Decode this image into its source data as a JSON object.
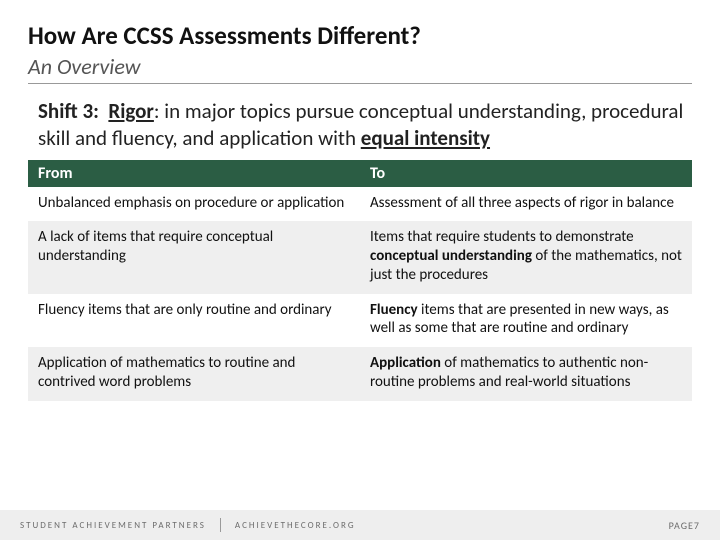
{
  "title": "How Are CCSS Assessments Different?",
  "subtitle": "An Overview",
  "shift": {
    "label": "Shift 3:",
    "keyword": "Rigor",
    "body1": ": in major topics pursue conceptual understanding, procedural skill and fluency, and application with ",
    "emph": "equal intensity"
  },
  "table": {
    "headers": {
      "from": "From",
      "to": "To"
    },
    "rows": [
      {
        "from": "Unbalanced emphasis on procedure or application",
        "to": "Assessment of all three aspects of rigor in balance"
      },
      {
        "from": "A lack of items that require conceptual understanding",
        "to_pre": "Items that require students to demonstrate ",
        "to_bold": "conceptual understanding",
        "to_post": " of the mathematics, not just the procedures"
      },
      {
        "from": "Fluency items that are only routine and ordinary",
        "to_bold": "Fluency",
        "to_post": " items that are presented in new ways, as well as some that are routine and ordinary"
      },
      {
        "from": "Application of mathematics to routine and contrived word problems",
        "to_bold": "Application",
        "to_post": " of mathematics to authentic non-routine problems and real-world situations"
      }
    ]
  },
  "footer": {
    "org": "STUDENT ACHIEVEMENT PARTNERS",
    "site": "ACHIEVETHECORE.ORG",
    "page_label": "PAGE",
    "page_num": "7"
  },
  "colors": {
    "header_bg": "#2b5d44",
    "footer_bg": "#eeeeee",
    "row_alt": "#efefef"
  }
}
